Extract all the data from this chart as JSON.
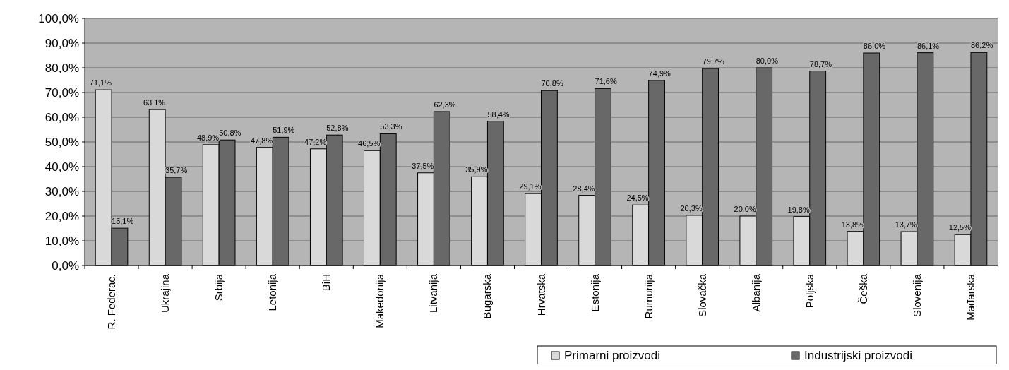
{
  "chart_data": {
    "type": "bar",
    "categories": [
      "R. Federac.",
      "Ukrajina",
      "Srbija",
      "Letonija",
      "BiH",
      "Makedonija",
      "Litvanija",
      "Bugarska",
      "Hrvatska",
      "Estonija",
      "Rumunija",
      "Slovačka",
      "Albanija",
      "Poljska",
      "Češka",
      "Slovenija",
      "Mađarska"
    ],
    "series": [
      {
        "name": "Primarni proizvodi",
        "color": "#d9d9d9",
        "values": [
          71.1,
          63.1,
          48.9,
          47.8,
          47.2,
          46.5,
          37.5,
          35.9,
          29.1,
          28.4,
          24.5,
          20.3,
          20.0,
          19.8,
          13.8,
          13.7,
          12.5
        ],
        "value_labels": [
          "71,1%",
          "63,1%",
          "48,9%",
          "47,8%",
          "47,2%",
          "46,5%",
          "37,5%",
          "35,9%",
          "29,1%",
          "28,4%",
          "24,5%",
          "20,3%",
          "20,0%",
          "19,8%",
          "13,8%",
          "13,7%",
          "12,5%"
        ]
      },
      {
        "name": "Industrijski proizvodi",
        "color": "#686868",
        "values": [
          15.1,
          35.7,
          50.8,
          51.9,
          52.8,
          53.3,
          62.3,
          58.4,
          70.8,
          71.6,
          74.9,
          79.7,
          80.0,
          78.7,
          86.0,
          86.1,
          86.2
        ],
        "value_labels": [
          "15,1%",
          "35,7%",
          "50,8%",
          "51,9%",
          "52,8%",
          "53,3%",
          "62,3%",
          "58,4%",
          "70,8%",
          "71,6%",
          "74,9%",
          "79,7%",
          "80,0%",
          "78,7%",
          "86,0%",
          "86,1%",
          "86,2%"
        ]
      }
    ],
    "ylim": [
      0,
      100
    ],
    "yticks": [
      {
        "value": 0,
        "label": "0,0%"
      },
      {
        "value": 10,
        "label": "10,0%"
      },
      {
        "value": 20,
        "label": "20,0%"
      },
      {
        "value": 30,
        "label": "30,0%"
      },
      {
        "value": 40,
        "label": "40,0%"
      },
      {
        "value": 50,
        "label": "50,0%"
      },
      {
        "value": 60,
        "label": "60,0%"
      },
      {
        "value": 70,
        "label": "70,0%"
      },
      {
        "value": 80,
        "label": "80,0%"
      },
      {
        "value": 90,
        "label": "90,0%"
      },
      {
        "value": 100,
        "label": "100,0%"
      }
    ],
    "grid": "y",
    "legend": "bottom right"
  }
}
